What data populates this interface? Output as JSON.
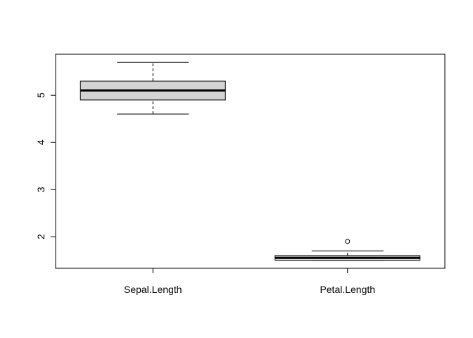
{
  "chart_data": {
    "type": "boxplot",
    "title": "",
    "xlabel": "",
    "ylabel": "",
    "ylim": [
      1.33,
      5.87
    ],
    "yticks": [
      "2",
      "3",
      "4",
      "5"
    ],
    "categories": [
      "Sepal.Length",
      "Petal.Length"
    ],
    "boxes": [
      {
        "category": "Sepal.Length",
        "whisker_low": 4.6,
        "q1": 4.9,
        "median": 5.1,
        "q3": 5.3,
        "whisker_high": 5.7,
        "outliers": []
      },
      {
        "category": "Petal.Length",
        "whisker_low": 1.5,
        "q1": 1.5,
        "median": 1.55,
        "q3": 1.6,
        "whisker_high": 1.7,
        "outliers": [
          1.9
        ]
      }
    ],
    "box_fill": "#d3d3d3",
    "grid": false,
    "legend": "none"
  }
}
